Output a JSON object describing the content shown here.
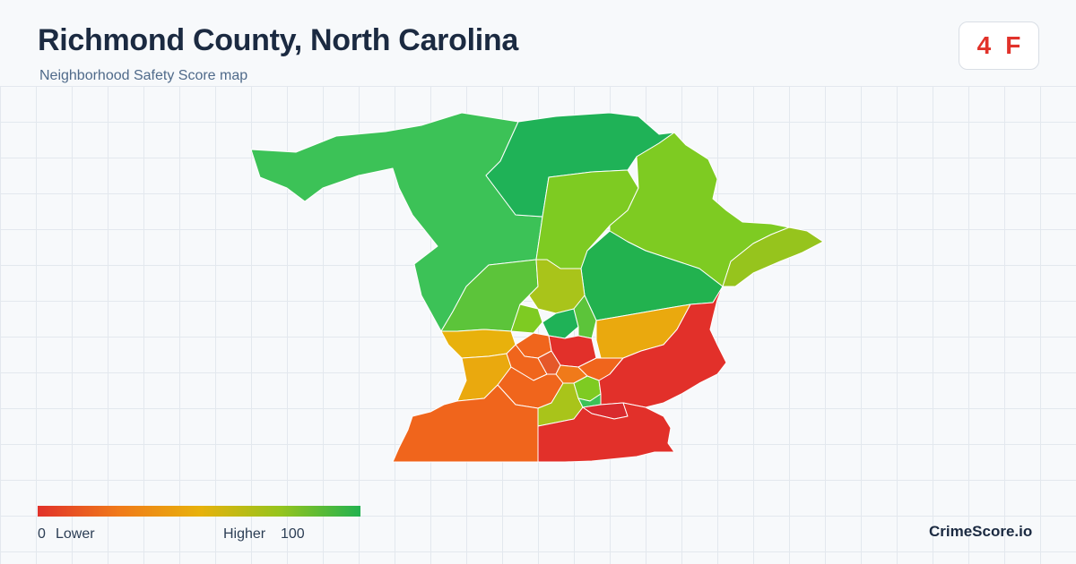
{
  "header": {
    "title": "Richmond County, North Carolina",
    "subtitle": "Neighborhood Safety Score map"
  },
  "score_badge": {
    "score": "4",
    "grade": "F",
    "color": "#e1322a"
  },
  "legend": {
    "min_value": "0",
    "min_label": "Lower",
    "max_label": "Higher",
    "max_value": "100",
    "colors": [
      "#e1322a",
      "#f07a1a",
      "#e8b10c",
      "#96c41d",
      "#22b24f"
    ]
  },
  "brand": "CrimeScore.io",
  "map": {
    "region_colors": {
      "dark_green": "#1fb257",
      "green": "#3cc257",
      "lime": "#7ecb22",
      "yellow_green": "#a9c41a",
      "amber": "#eaa90e",
      "orange": "#f0651c",
      "red": "#e2302a"
    }
  }
}
